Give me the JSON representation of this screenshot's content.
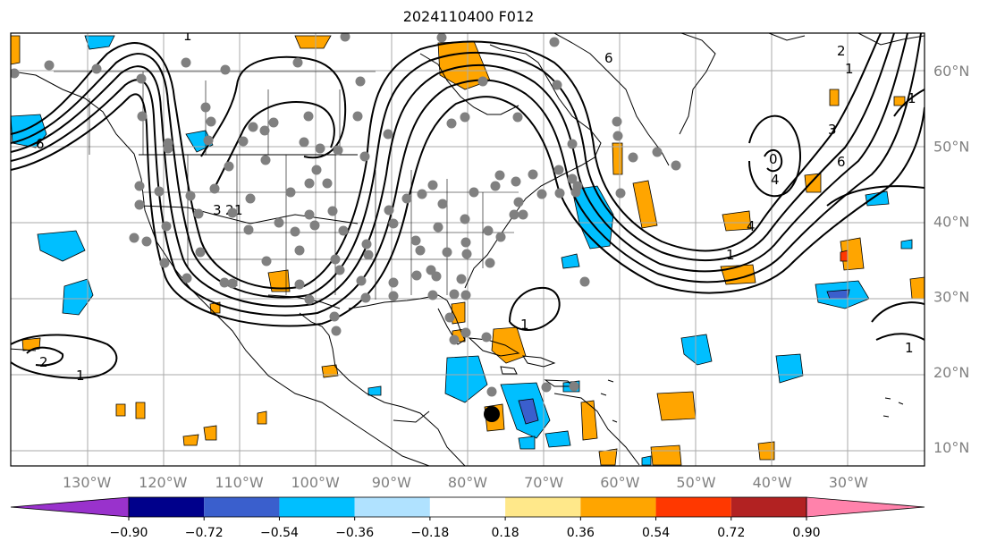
{
  "title": "2024110400 F012",
  "map": {
    "lon_range": [
      -140,
      -20
    ],
    "lat_range": [
      7.5,
      65
    ],
    "lon_labels": [
      "130°W",
      "120°W",
      "110°W",
      "100°W",
      "90°W",
      "80°W",
      "70°W",
      "60°W",
      "50°W",
      "40°W",
      "30°W"
    ],
    "lon_values": [
      -130,
      -120,
      -110,
      -100,
      -90,
      -80,
      -70,
      -60,
      -50,
      -40,
      -30
    ],
    "lat_labels": [
      "10°N",
      "20°N",
      "30°N",
      "40°N",
      "50°N",
      "60°N"
    ],
    "lat_values": [
      10,
      20,
      30,
      40,
      50,
      60
    ],
    "grid": true
  },
  "colorbar": {
    "ticks": [
      "−0.90",
      "−0.72",
      "−0.54",
      "−0.36",
      "−0.18",
      "0.18",
      "0.36",
      "0.54",
      "0.72",
      "0.90"
    ],
    "colors": [
      "#9932cc",
      "#00008b",
      "#3a5fcd",
      "#00bfff",
      "#b0e2ff",
      "#ffffff",
      "#ffe88a",
      "#ffa500",
      "#ff3800",
      "#b22222",
      "#ff82ab"
    ]
  },
  "contour_labels": [
    "6",
    "3",
    "2",
    "1",
    "1",
    "1",
    "1",
    "4",
    "3",
    "6",
    "1",
    "2",
    "4",
    "0",
    "2",
    "1",
    "6",
    "1",
    "1"
  ],
  "colors": {
    "gray_marker": "#808080",
    "storm_marker": "#000000",
    "coast": "#000000"
  }
}
